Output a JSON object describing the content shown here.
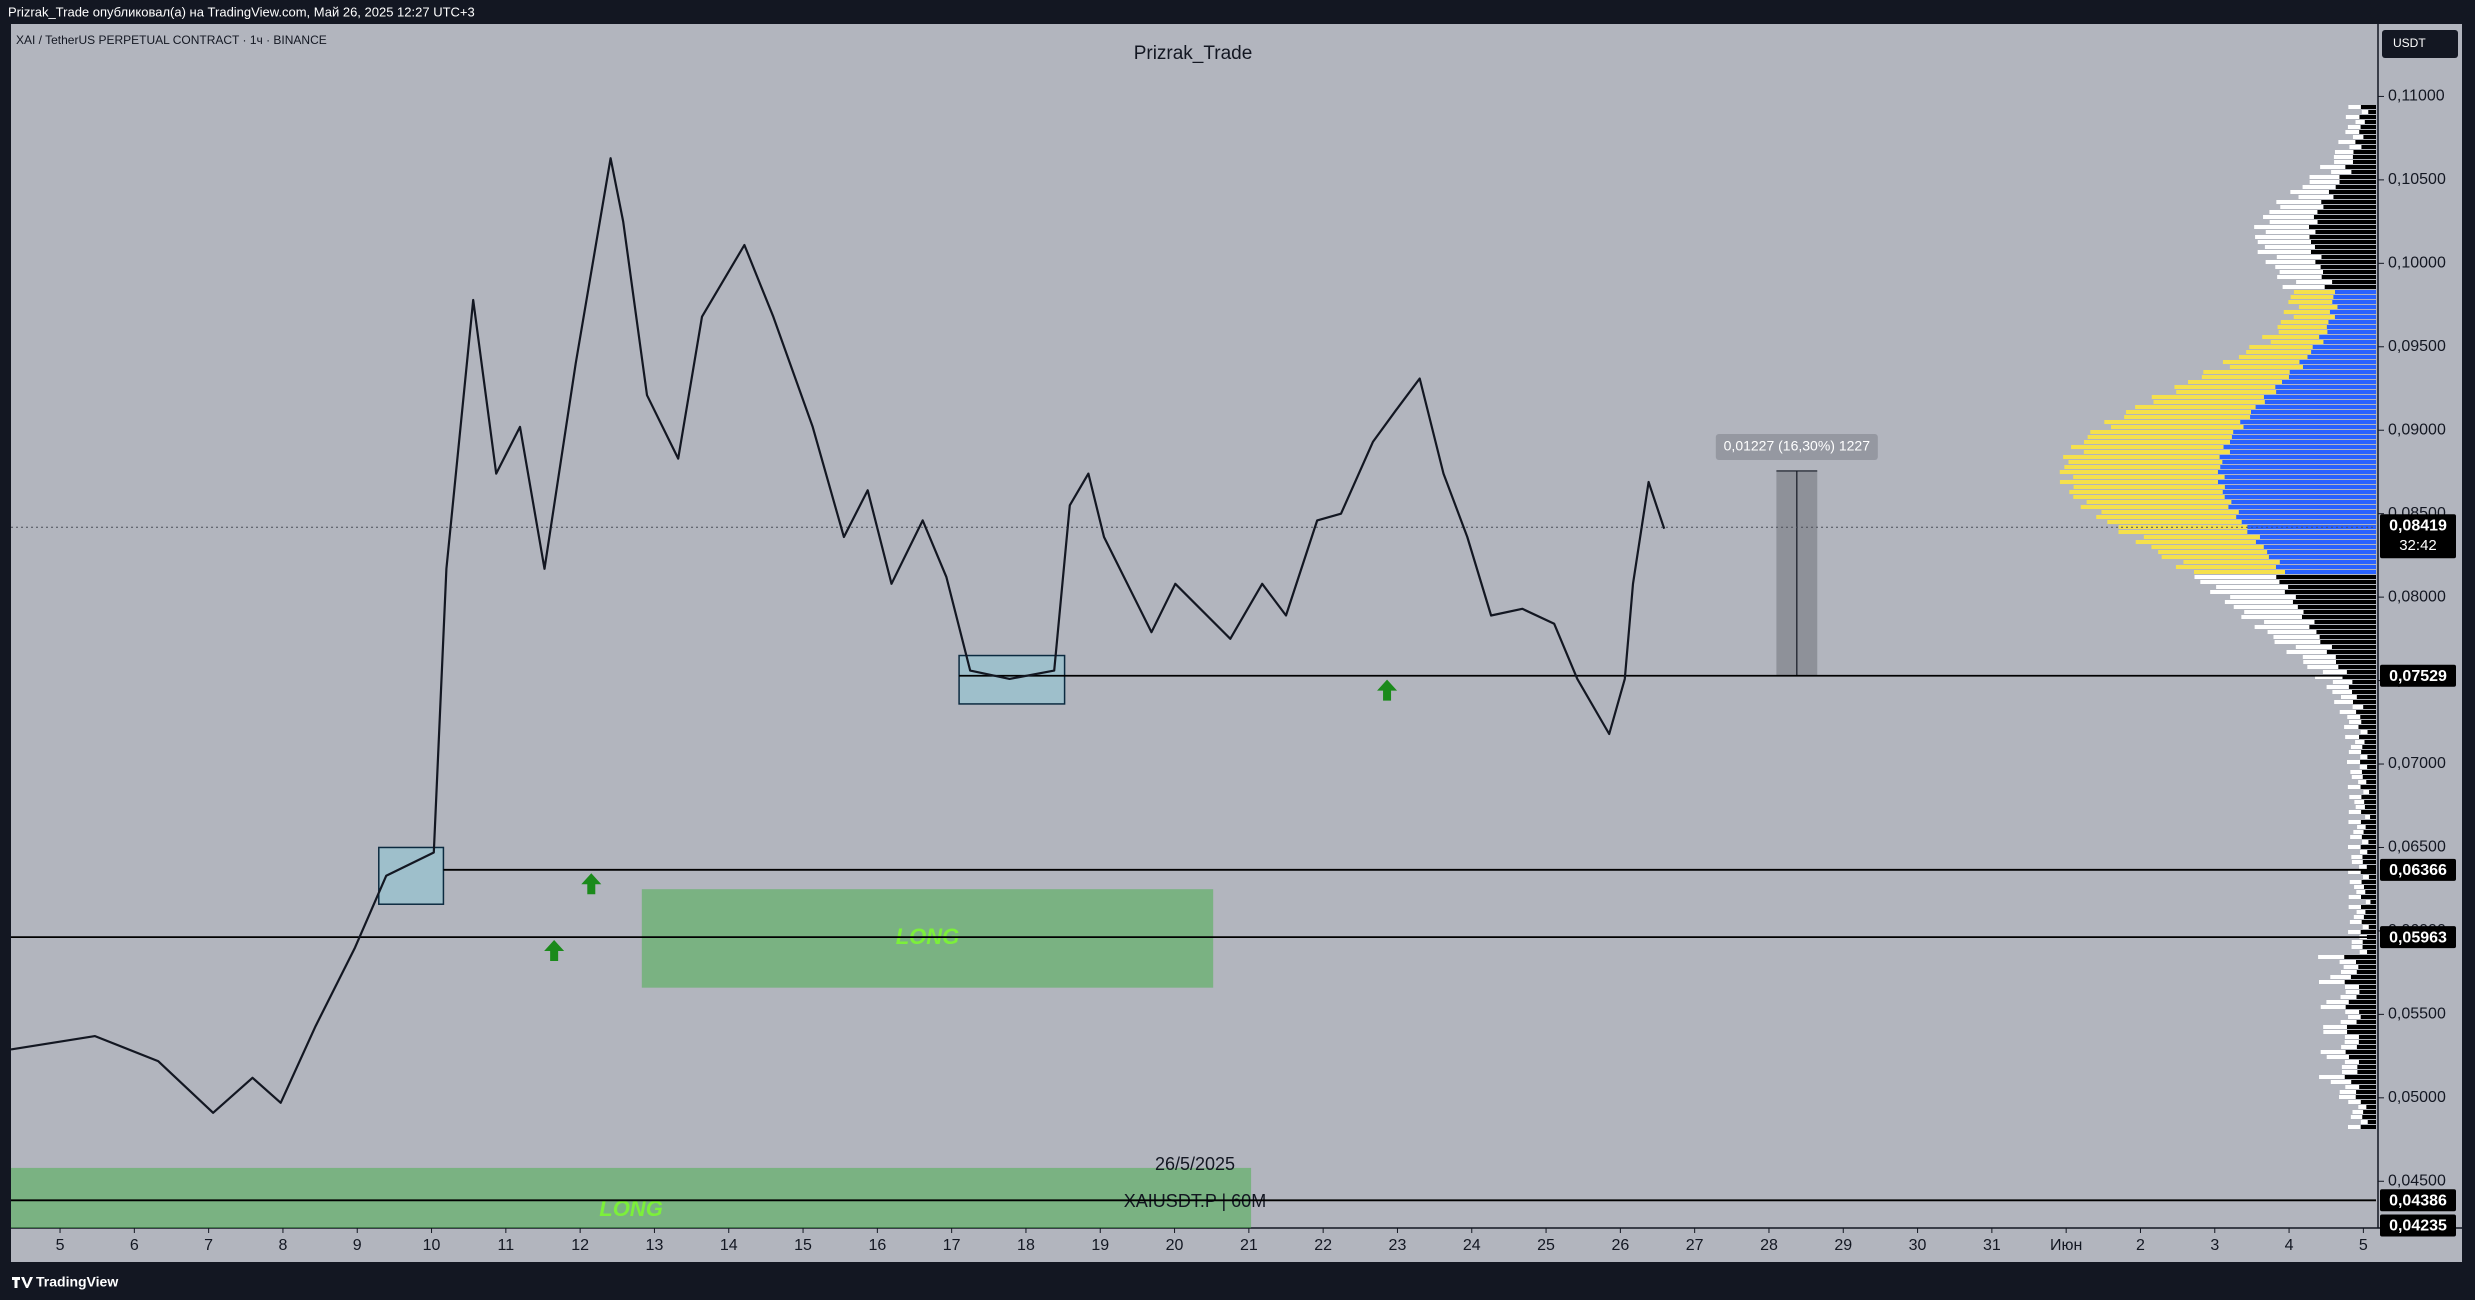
{
  "header": "Prizrak_Trade опубликовал(а) на TradingView.com, Май 26, 2025 12:27 UTC+3",
  "footer": "TradingView",
  "chart_data": {
    "type": "line",
    "title": "Prizrak_Trade",
    "symbol": "XAI / TetherUS PERPETUAL CONTRACT · 1ч · BINANCE",
    "currency": "USDT",
    "color": "#131722",
    "grid": false,
    "x": [
      4.34,
      5.47,
      6.32,
      7.06,
      7.59,
      7.97,
      8.44,
      8.97,
      9.39,
      10.03,
      10.2,
      10.56,
      10.87,
      11.19,
      11.52,
      11.94,
      12.41,
      12.58,
      12.9,
      13.32,
      13.64,
      14.21,
      14.6,
      15.13,
      15.55,
      15.87,
      16.19,
      16.61,
      16.93,
      17.25,
      17.78,
      18.38,
      18.59,
      18.84,
      19.05,
      19.69,
      20.01,
      20.75,
      21.18,
      21.5,
      21.92,
      22.24,
      22.67,
      22.98,
      23.3,
      23.62,
      23.94,
      24.26,
      24.68,
      25.11,
      25.42,
      25.85,
      26.06,
      26.17,
      26.38,
      26.59
    ],
    "values": [
      0.0529,
      0.0537,
      0.0522,
      0.0491,
      0.0512,
      0.0497,
      0.0543,
      0.059,
      0.0633,
      0.0647,
      0.0817,
      0.0978,
      0.0874,
      0.0902,
      0.0817,
      0.094,
      0.1063,
      0.1025,
      0.0921,
      0.0883,
      0.0968,
      0.1011,
      0.0968,
      0.0902,
      0.0836,
      0.0864,
      0.0808,
      0.0846,
      0.0812,
      0.0756,
      0.0751,
      0.0756,
      0.0855,
      0.0874,
      0.0836,
      0.0779,
      0.0808,
      0.0775,
      0.0808,
      0.0789,
      0.0846,
      0.085,
      0.0893,
      0.0912,
      0.0931,
      0.0874,
      0.0836,
      0.0789,
      0.0793,
      0.0784,
      0.0751,
      0.0718,
      0.0751,
      0.0808,
      0.0869,
      0.0841
    ],
    "xlim": [
      4.34,
      36.17
    ],
    "ylim": [
      0.0422,
      0.1141
    ],
    "xticks": [
      5,
      6,
      7,
      8,
      9,
      10,
      11,
      12,
      13,
      14,
      15,
      16,
      17,
      18,
      19,
      20,
      21,
      22,
      23,
      24,
      25,
      26,
      27,
      28,
      29,
      30,
      31,
      {
        "value": 32,
        "label": "Июн"
      },
      {
        "value": 33,
        "label": "2"
      },
      {
        "value": 34,
        "label": "3"
      },
      {
        "value": 35,
        "label": "4"
      },
      {
        "value": 36,
        "label": "5"
      }
    ],
    "yticks": [
      {
        "value": 0.11,
        "label": "0,11000"
      },
      {
        "value": 0.105,
        "label": "0,10500"
      },
      {
        "value": 0.1,
        "label": "0,10000"
      },
      {
        "value": 0.095,
        "label": "0,09500"
      },
      {
        "value": 0.09,
        "label": "0,09000"
      },
      {
        "value": 0.085,
        "label": "0,08500"
      },
      {
        "value": 0.08,
        "label": "0,08000"
      },
      {
        "value": 0.075,
        "label": "0,07500"
      },
      {
        "value": 0.07,
        "label": "0,07000"
      },
      {
        "value": 0.065,
        "label": "0,06500"
      },
      {
        "value": 0.06,
        "label": "0,06000"
      },
      {
        "value": 0.055,
        "label": "0,05500"
      },
      {
        "value": 0.05,
        "label": "0,05000"
      },
      {
        "value": 0.045,
        "label": "0,04500"
      }
    ],
    "hlines": [
      {
        "value": 0.07529,
        "label": "0,07529",
        "x0": 17.1
      },
      {
        "value": 0.06366,
        "label": "0,06366",
        "x0": 10.16
      },
      {
        "value": 0.05963,
        "label": "0,05963",
        "x0": 4.34
      },
      {
        "value": 0.04386,
        "label": "0,04386",
        "x0": 4.34
      }
    ],
    "axis_labels": [
      {
        "value": 0.04235,
        "label": "0,04235"
      }
    ],
    "last_price": {
      "value": 0.08419,
      "label": "0,08419",
      "countdown": "32:42"
    },
    "zones": [
      {
        "label": "LONG",
        "x": [
          12.83,
          20.52
        ],
        "y": [
          0.0566,
          0.0625
        ]
      },
      {
        "label": "LONG",
        "x": [
          4.34,
          21.03
        ],
        "y": [
          0.0422,
          0.0458
        ]
      }
    ],
    "boxes": [
      {
        "x": [
          9.29,
          10.16
        ],
        "y": [
          0.0616,
          0.065
        ]
      },
      {
        "x": [
          17.1,
          18.52
        ],
        "y": [
          0.0736,
          0.0765
        ]
      }
    ],
    "arrows": [
      {
        "x": 12.15,
        "y": 0.0628
      },
      {
        "x": 11.65,
        "y": 0.0588
      },
      {
        "x": 22.86,
        "y": 0.0744
      }
    ],
    "measure": {
      "from": 0.07529,
      "change": 0.01227,
      "label": "0,01227 (16,30%) 1227",
      "x": [
        28.1,
        28.65
      ]
    },
    "watermark": [
      "26/5/2025",
      "XAIUSDT.P | 60M"
    ]
  }
}
